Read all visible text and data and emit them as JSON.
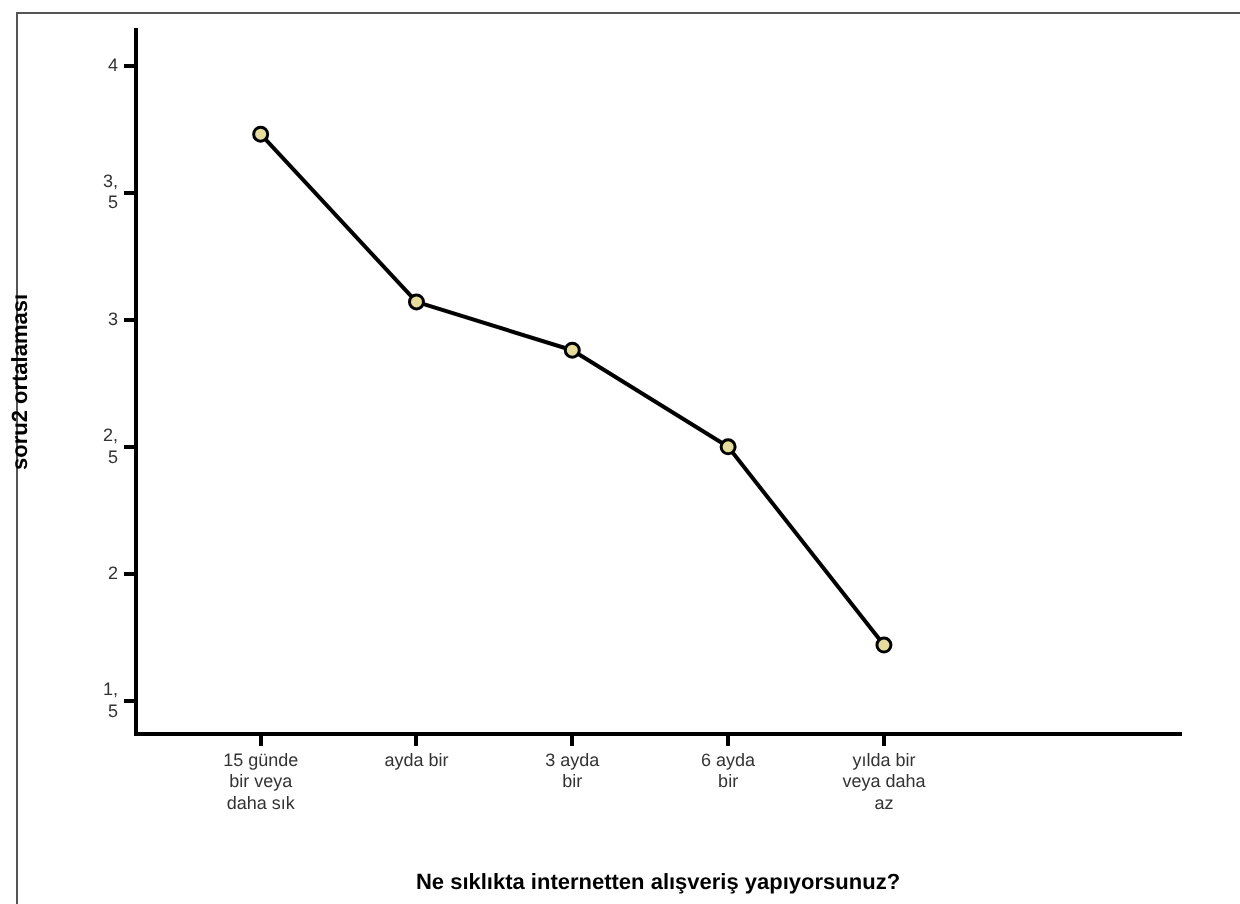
{
  "chart_data": {
    "type": "line",
    "xlabel": "Ne sıklıkta internetten alışveriş yapıyorsunuz?",
    "ylabel": "soru2 ortalaması",
    "categories": [
      "15 günde bir veya daha sık",
      "ayda bir",
      "3 ayda bir",
      "6 ayda bir",
      "yılda bir veya daha az"
    ],
    "series": [
      {
        "color": "#000000",
        "values": [
          3.73,
          3.07,
          2.88,
          2.5,
          1.72
        ]
      }
    ],
    "ylim": [
      1.37,
      4.14
    ],
    "yticks": [
      {
        "value": 1.5,
        "label": "1,\n5"
      },
      2,
      {
        "value": 2.5,
        "label": "2,\n5"
      },
      3,
      {
        "value": 3.5,
        "label": "3,\n5"
      },
      4
    ],
    "grid": false,
    "legend": false,
    "marker": "circle",
    "line_style": "solid"
  }
}
